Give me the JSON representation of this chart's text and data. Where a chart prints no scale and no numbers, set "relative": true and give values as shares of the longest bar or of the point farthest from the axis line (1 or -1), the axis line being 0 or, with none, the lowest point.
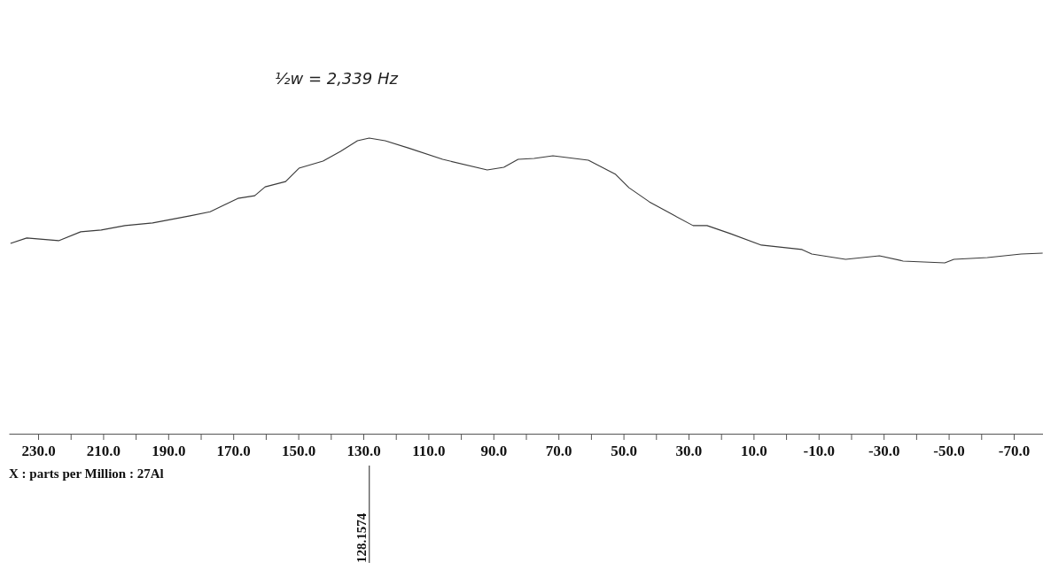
{
  "chart_data": {
    "type": "line",
    "relative": true,
    "xlabel": "X : parts per Million : 27Al",
    "xlim": [
      239,
      -79
    ],
    "xticks": [
      {
        "value": 230,
        "label": "230.0"
      },
      {
        "value": 220,
        "label": null
      },
      {
        "value": 210,
        "label": "210.0"
      },
      {
        "value": 200,
        "label": null
      },
      {
        "value": 190,
        "label": "190.0"
      },
      {
        "value": 180,
        "label": null
      },
      {
        "value": 170,
        "label": "170.0"
      },
      {
        "value": 160,
        "label": null
      },
      {
        "value": 150,
        "label": "150.0"
      },
      {
        "value": 140,
        "label": null
      },
      {
        "value": 130,
        "label": "130.0"
      },
      {
        "value": 120,
        "label": null
      },
      {
        "value": 110,
        "label": "110.0"
      },
      {
        "value": 100,
        "label": null
      },
      {
        "value": 90,
        "label": "90.0"
      },
      {
        "value": 80,
        "label": null
      },
      {
        "value": 70,
        "label": "70.0"
      },
      {
        "value": 60,
        "label": null
      },
      {
        "value": 50,
        "label": "50.0"
      },
      {
        "value": 40,
        "label": null
      },
      {
        "value": 30,
        "label": "30.0"
      },
      {
        "value": 20,
        "label": null
      },
      {
        "value": 10,
        "label": "10.0"
      },
      {
        "value": 0,
        "label": null
      },
      {
        "value": -10,
        "label": "-10.0"
      },
      {
        "value": -20,
        "label": null
      },
      {
        "value": -30,
        "label": "-30.0"
      },
      {
        "value": -40,
        "label": null
      },
      {
        "value": -50,
        "label": "-50.0"
      },
      {
        "value": -60,
        "label": null
      },
      {
        "value": -70,
        "label": "-70.0"
      }
    ],
    "annotations": [
      "½w = 2,339 Hz",
      {
        "text": "128.1574",
        "x": 128.1574
      }
    ],
    "series": [
      {
        "color": "#3a3a3a",
        "x": [
          238.5,
          233.5,
          223.7,
          216.9,
          210.6,
          203.3,
          194.8,
          183.3,
          177.1,
          168.6,
          163.4,
          160.2,
          153.9,
          149.8,
          142.4,
          137.0,
          131.8,
          128.2,
          123.3,
          116.0,
          105.6,
          91.9,
          86.8,
          82.4,
          77.5,
          71.7,
          60.8,
          52.4,
          48.3,
          42.0,
          35.7,
          28.6,
          24.3,
          17.2,
          7.6,
          -4.9,
          -7.9,
          -18.3,
          -28.7,
          -36.0,
          -48.8,
          -51.6,
          -61.9,
          -72.3,
          -78.9
        ],
        "values": [
          0.644,
          0.662,
          0.653,
          0.683,
          0.689,
          0.704,
          0.713,
          0.737,
          0.751,
          0.796,
          0.805,
          0.835,
          0.853,
          0.898,
          0.922,
          0.955,
          0.991,
          1,
          0.991,
          0.966,
          0.928,
          0.892,
          0.901,
          0.928,
          0.931,
          0.94,
          0.925,
          0.877,
          0.832,
          0.784,
          0.746,
          0.704,
          0.704,
          0.677,
          0.638,
          0.623,
          0.608,
          0.59,
          0.602,
          0.584,
          0.578,
          0.59,
          0.596,
          0.608,
          0.611
        ]
      }
    ]
  }
}
